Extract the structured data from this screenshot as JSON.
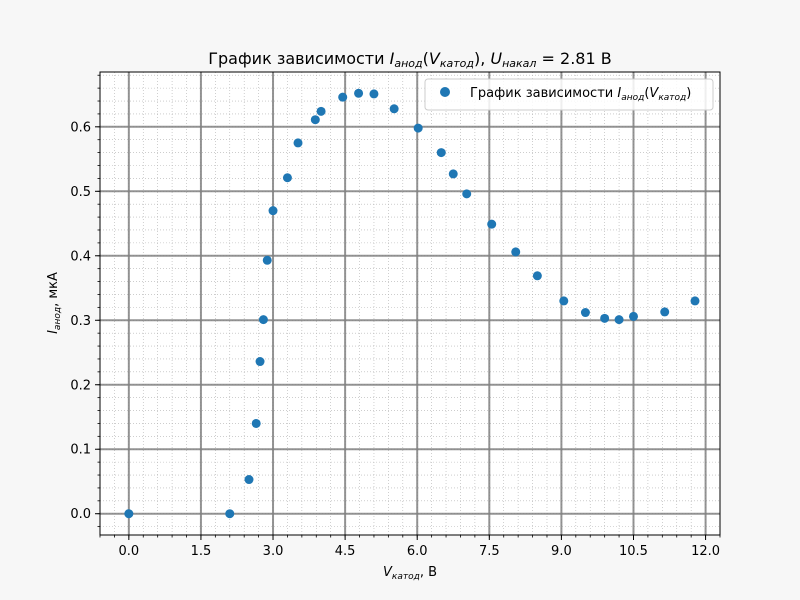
{
  "chart_data": {
    "type": "scatter",
    "title_parts": {
      "prefix": "График зависимости ",
      "I": "I",
      "I_sub": "анод",
      "open": "(",
      "V": "V",
      "V_sub": "катод",
      "close": "), ",
      "U": "U",
      "U_sub": "накал",
      "suffix": " = 2.81 В"
    },
    "xlabel_parts": {
      "V": "V",
      "V_sub": "катод",
      "suffix": ", В"
    },
    "ylabel_parts": {
      "I": "I",
      "I_sub": "анод",
      "suffix": ", мкА"
    },
    "legend": {
      "position": "top-right",
      "parts": {
        "prefix": "График зависимости ",
        "I": "I",
        "I_sub": "анод",
        "open": "(",
        "V": "V",
        "V_sub": "катод",
        "close": ")"
      }
    },
    "xlim": [
      -0.6,
      12.3
    ],
    "ylim": [
      -0.033,
      0.685
    ],
    "xticks": [
      0.0,
      1.5,
      3.0,
      4.5,
      6.0,
      7.5,
      9.0,
      10.5,
      12.0
    ],
    "xtick_labels": [
      "0.0",
      "1.5",
      "3.0",
      "4.5",
      "6.0",
      "7.5",
      "9.0",
      "10.5",
      "12.0"
    ],
    "yticks": [
      0.0,
      0.1,
      0.2,
      0.3,
      0.4,
      0.5,
      0.6
    ],
    "ytick_labels": [
      "0.0",
      "0.1",
      "0.2",
      "0.3",
      "0.4",
      "0.5",
      "0.6"
    ],
    "grid": {
      "major": true,
      "minor": true
    },
    "series": [
      {
        "color": "#1f77b4",
        "x": [
          0.0,
          2.1,
          2.5,
          2.65,
          2.73,
          2.8,
          2.88,
          3.0,
          3.3,
          3.52,
          3.88,
          4.0,
          4.45,
          4.78,
          5.1,
          5.52,
          6.02,
          6.5,
          6.75,
          7.03,
          7.55,
          8.05,
          8.5,
          9.05,
          9.5,
          9.9,
          10.2,
          10.5,
          11.15,
          11.78
        ],
        "y": [
          0.0,
          0.0,
          0.053,
          0.14,
          0.236,
          0.301,
          0.393,
          0.47,
          0.521,
          0.575,
          0.611,
          0.624,
          0.646,
          0.652,
          0.651,
          0.628,
          0.598,
          0.56,
          0.527,
          0.496,
          0.449,
          0.406,
          0.369,
          0.33,
          0.312,
          0.303,
          0.301,
          0.306,
          0.313,
          0.33
        ]
      }
    ]
  }
}
